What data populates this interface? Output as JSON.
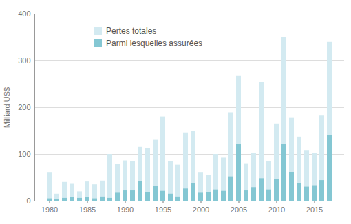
{
  "chart_data": {
    "type": "bar",
    "y_label": "Milliard US$",
    "categories": [
      "1980",
      null,
      null,
      null,
      null,
      "1985",
      null,
      null,
      null,
      null,
      "1990",
      null,
      null,
      null,
      null,
      "1995",
      null,
      null,
      null,
      null,
      "2000",
      null,
      null,
      null,
      null,
      "2005",
      null,
      null,
      null,
      null,
      "2010",
      null,
      null,
      null,
      null,
      "2015",
      null,
      null
    ],
    "series": [
      {
        "name": "Pertes totales",
        "color": "#d3eaf1",
        "values": [
          60,
          15,
          40,
          36,
          20,
          41,
          35,
          43,
          100,
          78,
          86,
          84,
          115,
          113,
          130,
          180,
          85,
          77,
          146,
          150,
          60,
          55,
          100,
          92,
          189,
          268,
          80,
          103,
          254,
          85,
          165,
          350,
          177,
          137,
          107,
          102,
          182,
          340
        ]
      },
      {
        "name": "Parmi lesquelles assurées",
        "color": "#84c7d3",
        "values": [
          5,
          3,
          6,
          8,
          6,
          8,
          5,
          9,
          6,
          17,
          22,
          22,
          42,
          19,
          32,
          21,
          15,
          9,
          26,
          37,
          17,
          19,
          24,
          21,
          52,
          122,
          22,
          29,
          48,
          24,
          47,
          122,
          61,
          37,
          30,
          33,
          44,
          140
        ]
      }
    ],
    "stacked": false,
    "ylim": [
      0,
      400
    ],
    "yticks": [
      0,
      100,
      200,
      300,
      400
    ],
    "grid": true,
    "legend": "top-left"
  }
}
